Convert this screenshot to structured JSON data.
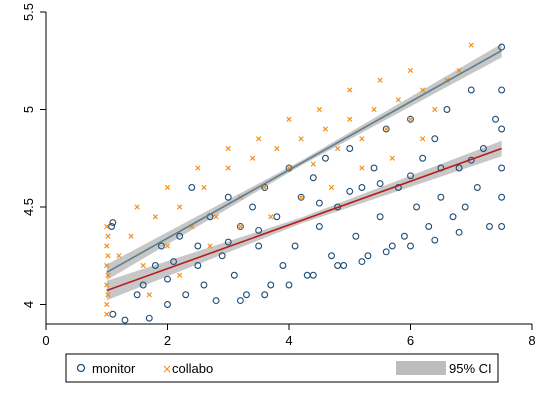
{
  "chart_data": {
    "type": "scatter",
    "title": "",
    "xlabel": "",
    "ylabel": "",
    "xlim": [
      0,
      8
    ],
    "ylim": [
      3.9,
      5.5
    ],
    "x_ticks": [
      "0",
      "2",
      "4",
      "6",
      "8"
    ],
    "y_ticks": [
      "4",
      "4.5",
      "5",
      "5.5"
    ],
    "grid": false,
    "legend_position": "bottom",
    "series": [
      {
        "name": "monitor",
        "marker": "hollow-circle",
        "color": "#1f4e79",
        "fit": {
          "intercept": 3.96,
          "slope": 0.112,
          "line_color": "#b71c1c",
          "ci_halfwidth": [
            0.05,
            0.015,
            0.04
          ]
        },
        "points": [
          [
            1.08,
            4.4
          ],
          [
            1.1,
            4.42
          ],
          [
            1.1,
            3.95
          ],
          [
            1.3,
            3.92
          ],
          [
            1.5,
            4.05
          ],
          [
            1.6,
            4.1
          ],
          [
            1.7,
            3.93
          ],
          [
            1.8,
            4.2
          ],
          [
            1.9,
            4.3
          ],
          [
            2.0,
            4.0
          ],
          [
            2.1,
            4.22
          ],
          [
            2.2,
            4.35
          ],
          [
            2.3,
            4.05
          ],
          [
            2.4,
            4.6
          ],
          [
            2.5,
            4.3
          ],
          [
            2.6,
            4.1
          ],
          [
            2.7,
            4.45
          ],
          [
            2.8,
            4.02
          ],
          [
            2.9,
            4.25
          ],
          [
            3.0,
            4.55
          ],
          [
            3.1,
            4.15
          ],
          [
            3.2,
            4.4
          ],
          [
            3.3,
            4.05
          ],
          [
            3.4,
            4.5
          ],
          [
            3.5,
            4.3
          ],
          [
            3.6,
            4.6
          ],
          [
            3.7,
            4.1
          ],
          [
            3.8,
            4.45
          ],
          [
            3.9,
            4.2
          ],
          [
            4.0,
            4.7
          ],
          [
            4.1,
            4.3
          ],
          [
            4.2,
            4.55
          ],
          [
            4.3,
            4.15
          ],
          [
            4.4,
            4.65
          ],
          [
            4.5,
            4.4
          ],
          [
            4.6,
            4.75
          ],
          [
            4.7,
            4.25
          ],
          [
            4.8,
            4.5
          ],
          [
            4.9,
            4.2
          ],
          [
            5.0,
            4.8
          ],
          [
            5.1,
            4.35
          ],
          [
            5.2,
            4.6
          ],
          [
            5.3,
            4.25
          ],
          [
            5.4,
            4.7
          ],
          [
            5.5,
            4.45
          ],
          [
            5.6,
            4.9
          ],
          [
            5.7,
            4.3
          ],
          [
            5.8,
            4.6
          ],
          [
            5.9,
            4.35
          ],
          [
            6.0,
            4.95
          ],
          [
            6.1,
            4.5
          ],
          [
            6.2,
            4.75
          ],
          [
            6.3,
            4.4
          ],
          [
            6.4,
            4.85
          ],
          [
            6.5,
            4.55
          ],
          [
            6.6,
            5.0
          ],
          [
            6.7,
            4.45
          ],
          [
            6.8,
            4.7
          ],
          [
            6.9,
            4.5
          ],
          [
            7.0,
            5.1
          ],
          [
            7.1,
            4.6
          ],
          [
            7.2,
            4.8
          ],
          [
            7.3,
            4.4
          ],
          [
            7.4,
            4.95
          ],
          [
            7.5,
            5.32
          ],
          [
            7.5,
            5.1
          ],
          [
            7.5,
            4.9
          ],
          [
            7.5,
            4.7
          ],
          [
            7.5,
            4.55
          ],
          [
            7.5,
            4.4
          ],
          [
            3.2,
            4.02
          ],
          [
            3.6,
            4.05
          ],
          [
            4.0,
            4.1
          ],
          [
            4.4,
            4.15
          ],
          [
            4.8,
            4.2
          ],
          [
            5.2,
            4.22
          ],
          [
            5.6,
            4.27
          ],
          [
            6.0,
            4.3
          ],
          [
            6.4,
            4.33
          ],
          [
            6.8,
            4.37
          ],
          [
            4.5,
            4.52
          ],
          [
            5.0,
            4.58
          ],
          [
            5.5,
            4.62
          ],
          [
            6.0,
            4.66
          ],
          [
            6.5,
            4.7
          ],
          [
            7.0,
            4.74
          ],
          [
            3.0,
            4.32
          ],
          [
            3.5,
            4.38
          ],
          [
            2.5,
            4.2
          ],
          [
            2.0,
            4.13
          ]
        ]
      },
      {
        "name": "collabo",
        "marker": "x",
        "color": "#f28e1c",
        "fit": {
          "intercept": 3.99,
          "slope": 0.175,
          "line_color": "#607d8b",
          "ci_halfwidth": [
            0.04,
            0.012,
            0.035
          ]
        },
        "points": [
          [
            1.0,
            4.4
          ],
          [
            1.0,
            4.3
          ],
          [
            1.0,
            4.2
          ],
          [
            1.0,
            4.1
          ],
          [
            1.0,
            4.0
          ],
          [
            1.0,
            3.95
          ],
          [
            1.02,
            4.35
          ],
          [
            1.02,
            4.25
          ],
          [
            1.02,
            4.15
          ],
          [
            1.02,
            4.05
          ],
          [
            1.2,
            4.25
          ],
          [
            1.4,
            4.35
          ],
          [
            1.6,
            4.2
          ],
          [
            1.8,
            4.45
          ],
          [
            2.0,
            4.3
          ],
          [
            2.2,
            4.5
          ],
          [
            2.4,
            4.4
          ],
          [
            2.6,
            4.6
          ],
          [
            2.8,
            4.45
          ],
          [
            3.0,
            4.7
          ],
          [
            3.2,
            4.55
          ],
          [
            3.4,
            4.75
          ],
          [
            3.6,
            4.6
          ],
          [
            3.8,
            4.8
          ],
          [
            4.0,
            4.7
          ],
          [
            4.2,
            4.85
          ],
          [
            4.4,
            4.72
          ],
          [
            4.6,
            4.9
          ],
          [
            4.8,
            4.8
          ],
          [
            5.0,
            4.95
          ],
          [
            5.2,
            4.85
          ],
          [
            5.4,
            5.0
          ],
          [
            5.6,
            4.9
          ],
          [
            5.8,
            5.05
          ],
          [
            6.0,
            4.95
          ],
          [
            6.2,
            5.1
          ],
          [
            6.4,
            5.0
          ],
          [
            6.6,
            5.15
          ],
          [
            6.8,
            5.2
          ],
          [
            7.0,
            5.33
          ],
          [
            1.5,
            4.5
          ],
          [
            2.0,
            4.6
          ],
          [
            2.5,
            4.7
          ],
          [
            3.0,
            4.8
          ],
          [
            3.5,
            4.85
          ],
          [
            4.0,
            4.95
          ],
          [
            4.5,
            5.0
          ],
          [
            5.0,
            5.1
          ],
          [
            5.5,
            5.15
          ],
          [
            6.0,
            5.2
          ],
          [
            1.7,
            4.05
          ],
          [
            2.2,
            4.15
          ],
          [
            2.7,
            4.3
          ],
          [
            3.2,
            4.4
          ],
          [
            3.7,
            4.45
          ],
          [
            4.2,
            4.55
          ],
          [
            4.7,
            4.6
          ],
          [
            5.2,
            4.7
          ],
          [
            5.7,
            4.75
          ],
          [
            6.2,
            4.85
          ]
        ]
      }
    ],
    "legend": {
      "items": [
        {
          "label": "monitor",
          "symbol": "o"
        },
        {
          "label": "collabo",
          "symbol": "×"
        },
        {
          "label": "95% CI",
          "symbol": "band"
        }
      ]
    }
  }
}
